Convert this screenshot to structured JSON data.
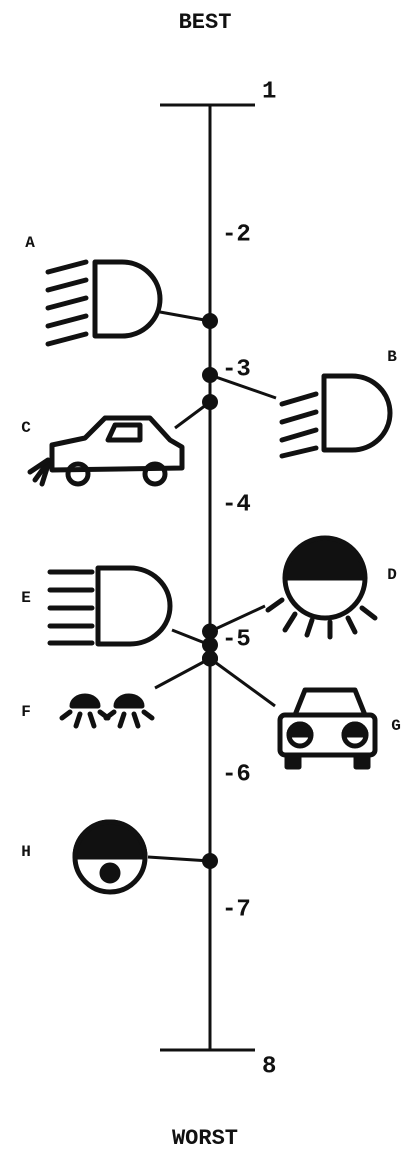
{
  "chart_data": {
    "type": "scale",
    "title": "BEST",
    "footer": "WORST",
    "categories": [
      "A",
      "B",
      "C",
      "D",
      "E",
      "F",
      "G",
      "H"
    ],
    "values": [
      2.6,
      3.0,
      3.2,
      4.9,
      5.0,
      5.1,
      5.1,
      6.6
    ],
    "ylim": [
      1,
      8
    ],
    "yticks": [
      1,
      {
        "value": 2,
        "label": "-2"
      },
      {
        "value": 3,
        "label": "-3"
      },
      {
        "value": 4,
        "label": "-4"
      },
      {
        "value": 5,
        "label": "-5"
      },
      {
        "value": 6,
        "label": "-6"
      },
      {
        "value": 7,
        "label": "-7"
      },
      8
    ],
    "color": "#111111"
  }
}
